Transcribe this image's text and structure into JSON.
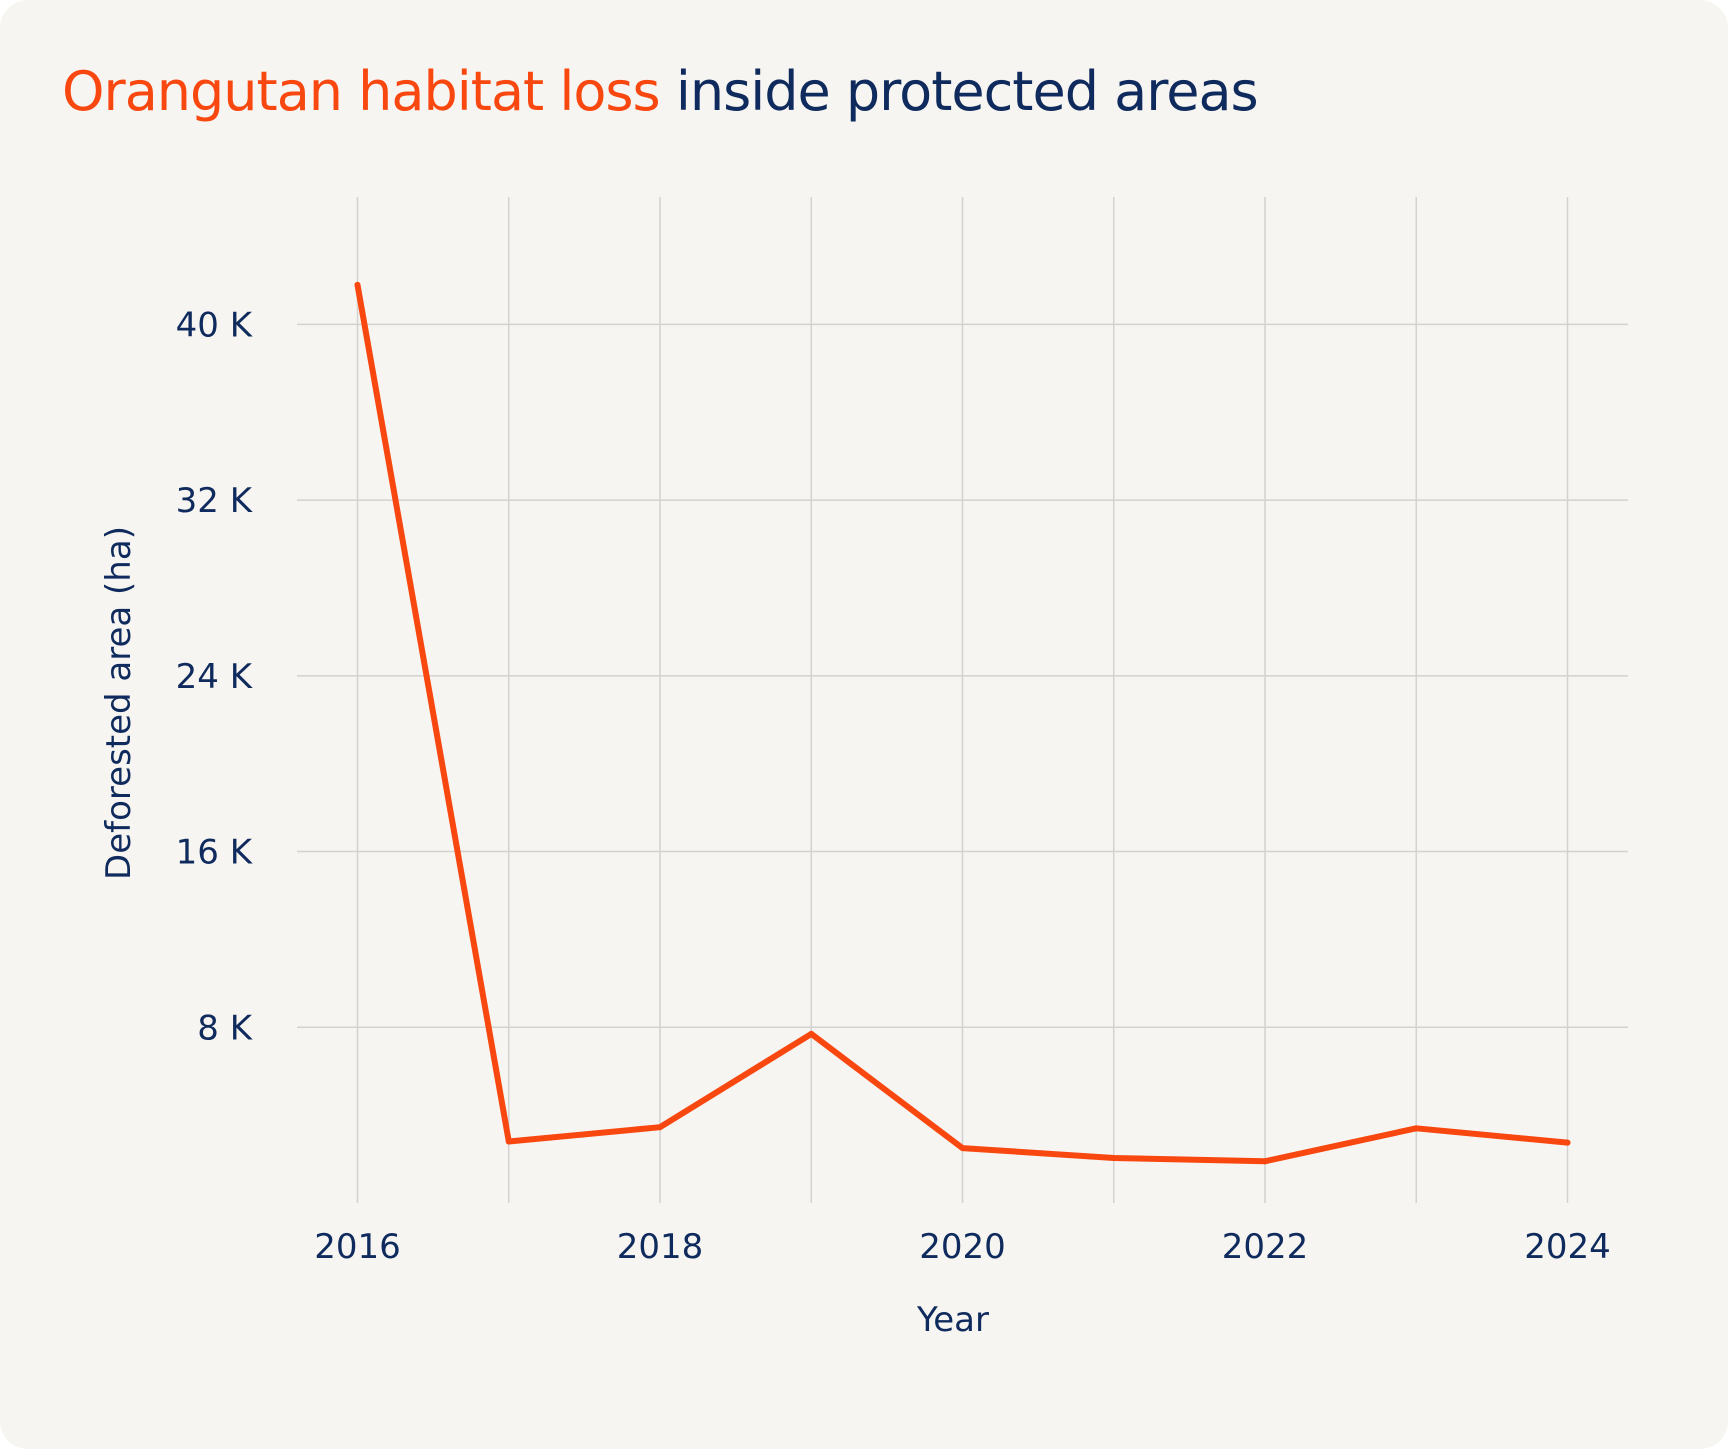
{
  "title": {
    "highlight": "Orangutan habitat loss",
    "rest": "inside protected areas"
  },
  "colors": {
    "background": "#f7f5f2",
    "line": "#f94710",
    "text": "#0f2a5c",
    "grid": "#d4d2cf"
  },
  "chart_data": {
    "type": "line",
    "xlabel": "Year",
    "ylabel": "Deforested area (ha)",
    "x": [
      2016,
      2017,
      2018,
      2019,
      2020,
      2021,
      2022,
      2023,
      2024
    ],
    "series": [
      {
        "values": [
          41800,
          2800,
          3450,
          7700,
          2500,
          2050,
          1900,
          3400,
          2750
        ]
      }
    ],
    "xlim": [
      2015.6,
      2024.4
    ],
    "ylim": [
      0,
      45800
    ],
    "xticks": [
      2016,
      2018,
      2020,
      2022,
      2024
    ],
    "xtick_labels": [
      "2016",
      "2018",
      "2020",
      "2022",
      "2024"
    ],
    "yticks": [
      8000,
      16000,
      24000,
      32000,
      40000
    ],
    "ytick_labels": [
      "8 K",
      "16 K",
      "24 K",
      "32 K",
      "40 K"
    ],
    "grid": true,
    "legend": "none"
  }
}
